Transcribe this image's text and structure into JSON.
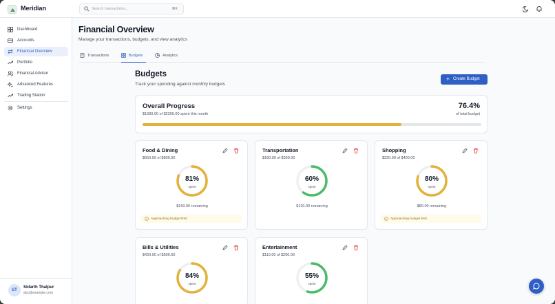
{
  "app": {
    "brand": "Meridian"
  },
  "search": {
    "placeholder": "Search transactions...",
    "shortcut": "⌘K"
  },
  "sidebar": {
    "items": [
      {
        "label": "Dashboard",
        "icon": "grid-icon"
      },
      {
        "label": "Accounts",
        "icon": "card-icon"
      },
      {
        "label": "Financial Overview",
        "icon": "arrows-icon",
        "active": true
      },
      {
        "label": "Portfolio",
        "icon": "trend-icon"
      },
      {
        "label": "Financial Advisor",
        "icon": "users-icon"
      },
      {
        "label": "Advanced Features",
        "icon": "sparkles-icon"
      },
      {
        "label": "Trading Station",
        "icon": "trend-icon"
      },
      {
        "label": "Settings",
        "icon": "gear-icon"
      }
    ],
    "user": {
      "initials": "ST",
      "name": "Sidarth Thalpur",
      "email": "abc@example.com"
    }
  },
  "page": {
    "title": "Financial Overview",
    "subtitle": "Manage your transactions, budgets, and view analytics",
    "tabs": [
      {
        "label": "Transactions",
        "icon": "doc-icon"
      },
      {
        "label": "Budgets",
        "icon": "grid-icon",
        "active": true
      },
      {
        "label": "Analytics",
        "icon": "pie-icon"
      }
    ]
  },
  "budgets": {
    "title": "Budgets",
    "subtitle": "Track your spending against monthly budgets",
    "create_label": "Create Budget",
    "overall": {
      "title": "Overall Progress",
      "summary": "$1680.00 of $2200.00 spent this month",
      "percent_text": "76.4%",
      "percent_label": "of total budget",
      "progress": 0.764
    },
    "cards": [
      {
        "name": "Food & Dining",
        "amount": "$650.00 of $800.00",
        "percent_text": "81%",
        "spent_label": "spent",
        "remaining": "$150.00 remaining",
        "warning": "Approaching budget limit",
        "progress": 0.81,
        "color": "#e2b23b"
      },
      {
        "name": "Transportation",
        "amount": "$180.00 of $300.00",
        "percent_text": "60%",
        "spent_label": "spent",
        "remaining": "$120.00 remaining",
        "warning": "",
        "progress": 0.6,
        "color": "#4cbb6c"
      },
      {
        "name": "Shopping",
        "amount": "$320.00 of $400.00",
        "percent_text": "80%",
        "spent_label": "spent",
        "remaining": "$80.00 remaining",
        "warning": "Approaching budget limit",
        "progress": 0.8,
        "color": "#e2b23b"
      },
      {
        "name": "Bills & Utilities",
        "amount": "$420.00 of $500.00",
        "percent_text": "84%",
        "spent_label": "spent",
        "remaining": "",
        "warning": "",
        "progress": 0.84,
        "color": "#e2b23b"
      },
      {
        "name": "Entertainment",
        "amount": "$110.00 of $200.00",
        "percent_text": "55%",
        "spent_label": "spent",
        "remaining": "",
        "warning": "",
        "progress": 0.55,
        "color": "#4cbb6c"
      }
    ]
  },
  "colors": {
    "accent": "#2f5fc4",
    "warning": "#e2b23b",
    "good": "#4cbb6c"
  }
}
